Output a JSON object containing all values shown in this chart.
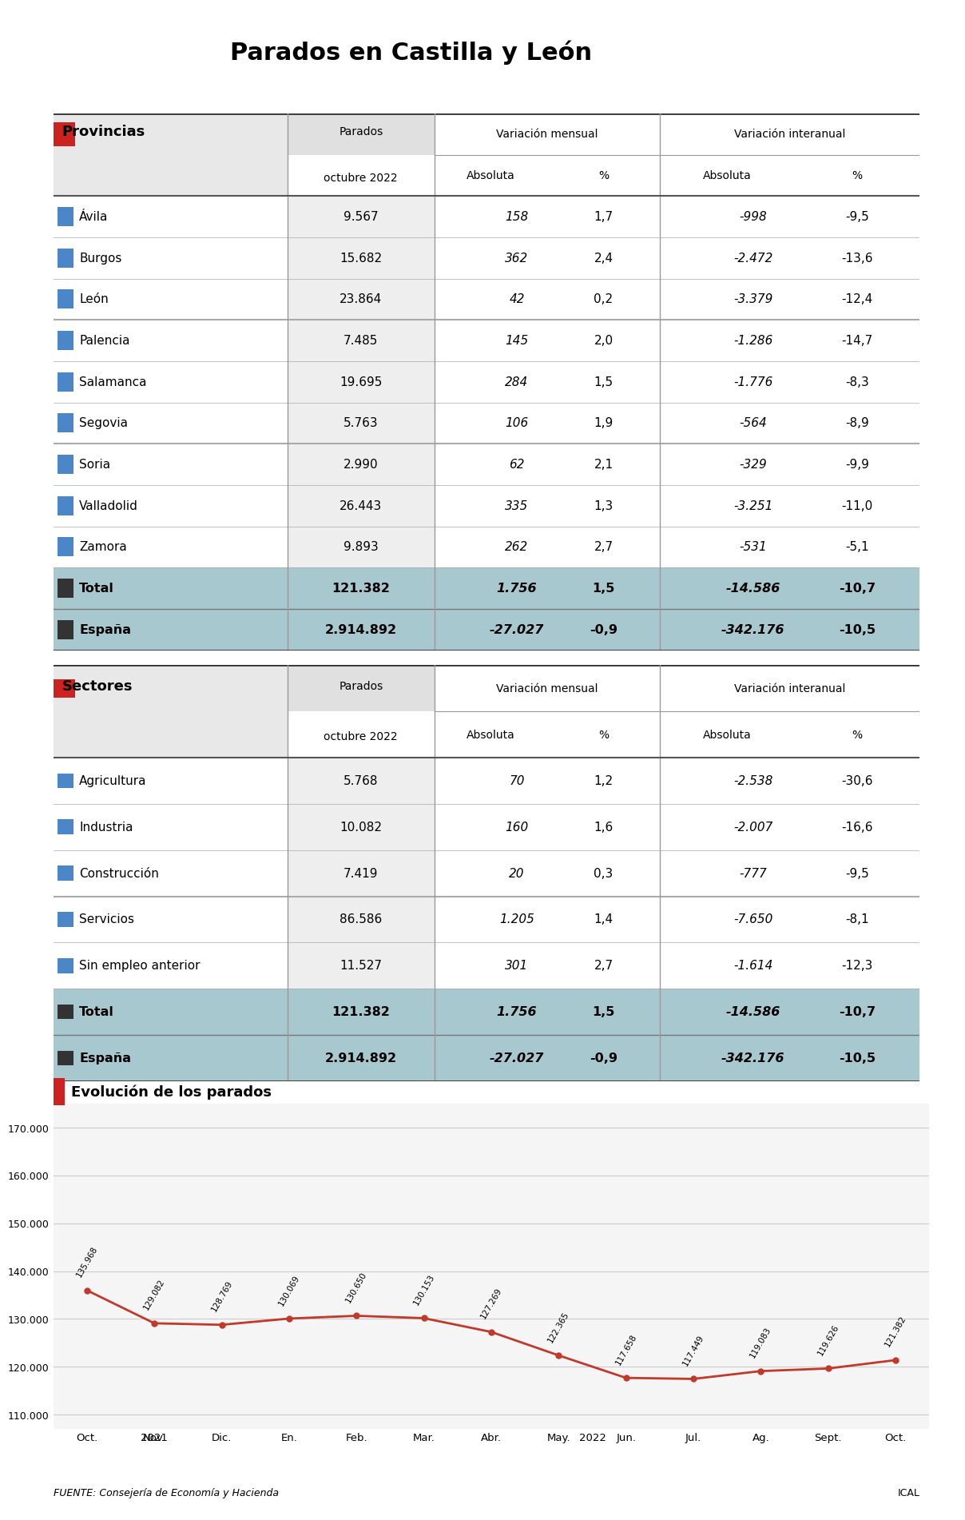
{
  "title": "Parados en Castilla y León",
  "bg_color": "#ffffff",
  "header_bg": "#f0f0f0",
  "total_bg": "#a8c8d0",
  "table1_header": [
    "",
    "Parados\noctubre 2022",
    "Variación mensual",
    "",
    "Variación interanual",
    ""
  ],
  "table1_subheader": [
    "",
    "",
    "Absoluta",
    "%",
    "Absoluta",
    "%"
  ],
  "provincias": [
    [
      "Ávila",
      "9.567",
      "158",
      "1,7",
      "-998",
      "-9,5"
    ],
    [
      "Burgos",
      "15.682",
      "362",
      "2,4",
      "-2.472",
      "-13,6"
    ],
    [
      "León",
      "23.864",
      "42",
      "0,2",
      "-3.379",
      "-12,4"
    ],
    [
      "Palencia",
      "7.485",
      "145",
      "2,0",
      "-1.286",
      "-14,7"
    ],
    [
      "Salamanca",
      "19.695",
      "284",
      "1,5",
      "-1.776",
      "-8,3"
    ],
    [
      "Segovia",
      "5.763",
      "106",
      "1,9",
      "-564",
      "-8,9"
    ],
    [
      "Soria",
      "2.990",
      "62",
      "2,1",
      "-329",
      "-9,9"
    ],
    [
      "Valladolid",
      "26.443",
      "335",
      "1,3",
      "-3.251",
      "-11,0"
    ],
    [
      "Zamora",
      "9.893",
      "262",
      "2,7",
      "-531",
      "-5,1"
    ]
  ],
  "total_row1": [
    "Total",
    "121.382",
    "1.756",
    "1,5",
    "-14.586",
    "-10,7"
  ],
  "espana_row1": [
    "España",
    "2.914.892",
    "-27.027",
    "-0,9",
    "-342.176",
    "-10,5"
  ],
  "sectores": [
    [
      "Agricultura",
      "5.768",
      "70",
      "1,2",
      "-2.538",
      "-30,6"
    ],
    [
      "Industria",
      "10.082",
      "160",
      "1,6",
      "-2.007",
      "-16,6"
    ],
    [
      "Construcción",
      "7.419",
      "20",
      "0,3",
      "-777",
      "-9,5"
    ],
    [
      "Servicios",
      "86.586",
      "1.205",
      "1,4",
      "-7.650",
      "-8,1"
    ],
    [
      "Sin empleo anterior",
      "11.527",
      "301",
      "2,7",
      "-1.614",
      "-12,3"
    ]
  ],
  "total_row2": [
    "Total",
    "121.382",
    "1.756",
    "1,5",
    "-14.586",
    "-10,7"
  ],
  "espana_row2": [
    "España",
    "2.914.892",
    "-27.027",
    "-0,9",
    "-342.176",
    "-10,5"
  ],
  "chart_title": "Evolución de los parados",
  "chart_months": [
    "Oct.",
    "Nov.",
    "Dic.",
    "En.",
    "Feb.",
    "Mar.",
    "Abr.",
    "May.",
    "Jun.",
    "Jul.",
    "Ag.",
    "Sept.",
    "Oct."
  ],
  "chart_years": [
    "2021",
    "",
    "",
    "",
    "2022",
    "",
    "",
    "",
    "",
    "",
    "",
    "",
    ""
  ],
  "chart_values": [
    135968,
    129082,
    128769,
    130069,
    130650,
    130153,
    127269,
    122365,
    117658,
    117449,
    119083,
    119626,
    121382
  ],
  "chart_labels": [
    "135.968",
    "129.082",
    "128.769",
    "130.069",
    "130.650",
    "130.153",
    "127.269",
    "122.365",
    "117.658",
    "117.449",
    "119.083",
    "119.626",
    "121.382"
  ],
  "chart_yticks": [
    110000,
    120000,
    130000,
    140000,
    150000,
    160000,
    170000
  ],
  "chart_ytick_labels": [
    "110.000",
    "120.000",
    "130.000",
    "140.000",
    "150.000",
    "160.000",
    "170.000"
  ],
  "line_color": "#c0392b",
  "marker_color": "#c0392b",
  "footer_left": "FUENTE: Consejería de Economía y Hacienda",
  "footer_right": "ICAL",
  "col_marker_color": "#4a86c8",
  "red_marker_color": "#cc2222"
}
